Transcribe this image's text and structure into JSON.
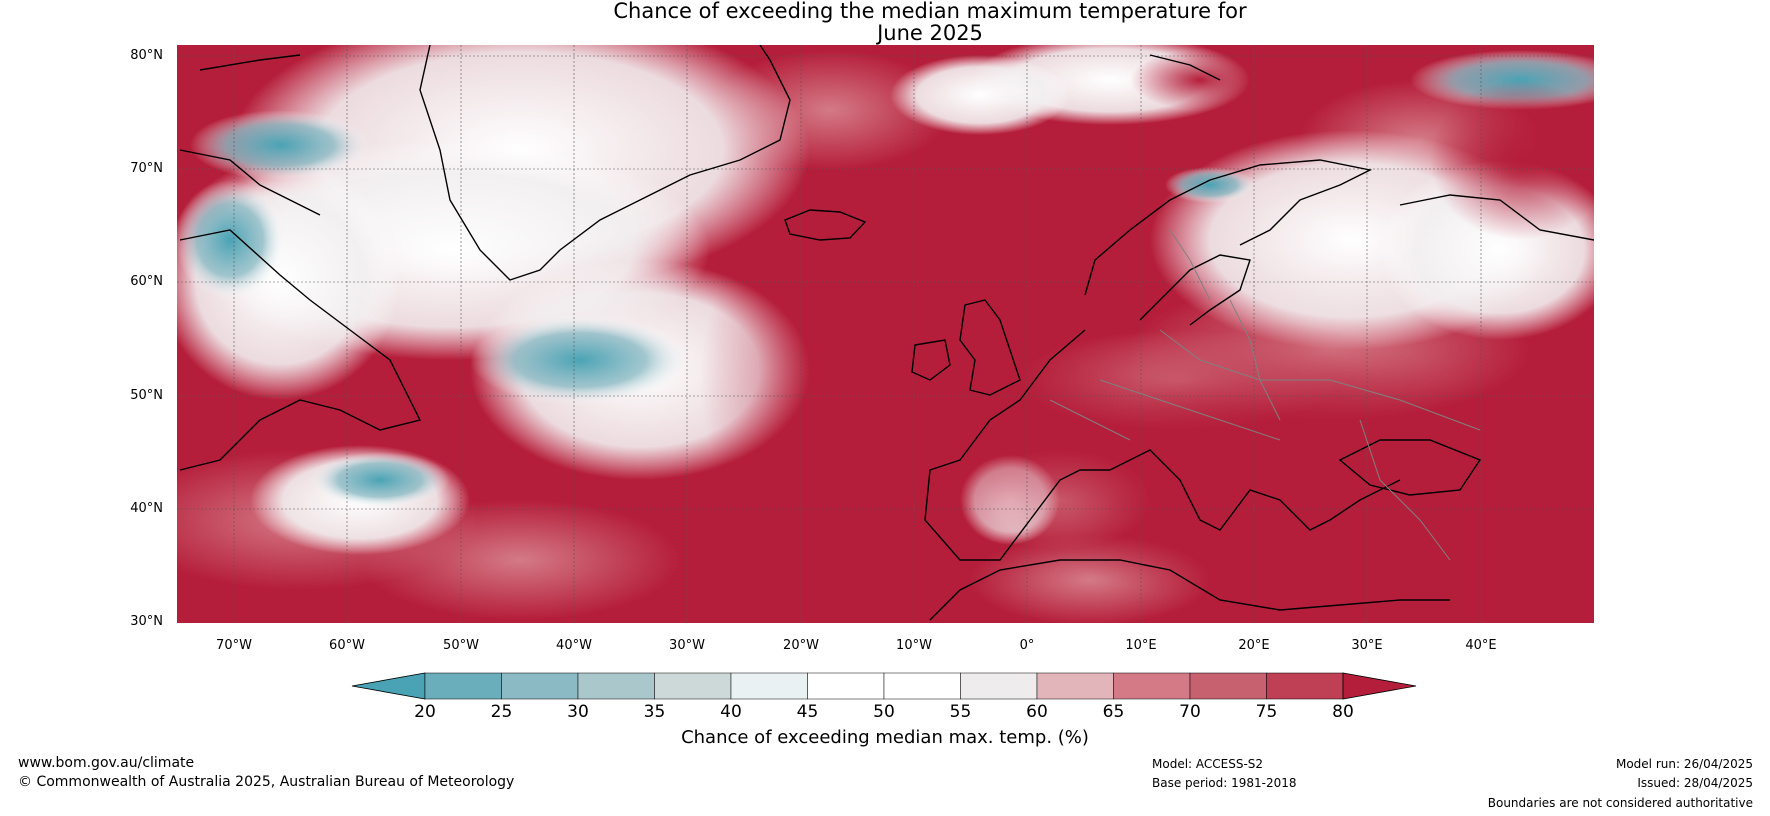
{
  "title": {
    "line1": "Chance of exceeding the median maximum temperature for",
    "line2": "June 2025"
  },
  "map": {
    "lat_labels": [
      "80°N",
      "70°N",
      "60°N",
      "50°N",
      "40°N",
      "30°N"
    ],
    "lon_labels": [
      "70°W",
      "60°W",
      "50°W",
      "40°W",
      "30°W",
      "20°W",
      "10°W",
      "0°",
      "10°E",
      "20°E",
      "30°E",
      "40°E"
    ],
    "extent": {
      "lon_min": -75,
      "lon_max": 50,
      "lat_min": 30,
      "lat_max": 81
    },
    "colors": {
      "low": "#4aa3b5",
      "mid": "#ffffff",
      "high": "#b51e3a",
      "coast": "#000000",
      "borders": "#808080"
    }
  },
  "colorbar": {
    "ticks": [
      "20",
      "25",
      "30",
      "35",
      "40",
      "45",
      "50",
      "55",
      "60",
      "65",
      "70",
      "75",
      "80"
    ],
    "colors": [
      "#4aa3b5",
      "#6aaebc",
      "#8bbac4",
      "#aac7cc",
      "#cdd8d9",
      "#eaf1f2",
      "#ffffff",
      "#ffffff",
      "#eeeced",
      "#e2b5bb",
      "#d47a87",
      "#c7606f",
      "#bf3f54",
      "#b51e3a"
    ],
    "label": "Chance of exceeding median max. temp. (%)"
  },
  "footer": {
    "website": "www.bom.gov.au/climate",
    "copyright": "© Commonwealth of Australia 2025, Australian Bureau of Meteorology",
    "model": "Model: ACCESS-S2",
    "base_period": "Base period: 1981-2018",
    "model_run": "Model run: 26/04/2025",
    "issued": "Issued: 28/04/2025",
    "disclaimer": "Boundaries are not considered authoritative"
  }
}
